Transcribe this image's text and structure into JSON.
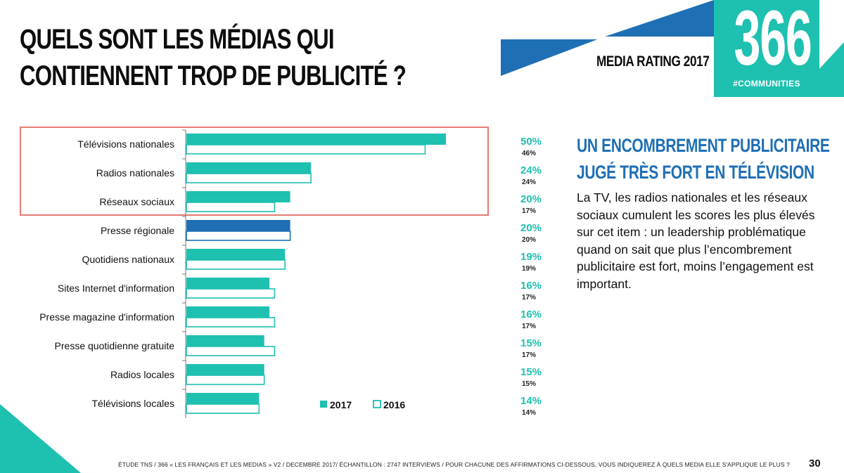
{
  "title": {
    "line1": "QUELS SONT LES MÉDIAS QUI",
    "line2": "CONTIENNENT TROP DE PUBLICITÉ ?"
  },
  "brand": {
    "label": "MEDIA RATING 2017",
    "logo_number": "366",
    "logo_tag": "#COMMUNITIES"
  },
  "colors": {
    "teal": "#1ec0b0",
    "blue": "#1f6fb4",
    "highlight_border": "#e57a70"
  },
  "chart_data": {
    "type": "bar",
    "orientation": "horizontal",
    "categories": [
      "Télévisions nationales",
      "Radios nationales",
      "Réseaux sociaux",
      "Presse régionale",
      "Quotidiens nationaux",
      "Sites Internet d'information",
      "Presse magazine d'information",
      "Presse quotidienne gratuite",
      "Radios locales",
      "Télévisions locales"
    ],
    "series": [
      {
        "name": "2017",
        "values": [
          50,
          24,
          20,
          20,
          19,
          16,
          16,
          15,
          15,
          14
        ],
        "style": "filled"
      },
      {
        "name": "2016",
        "values": [
          46,
          24,
          17,
          20,
          19,
          17,
          17,
          17,
          15,
          14
        ],
        "style": "outline"
      }
    ],
    "value_labels_2017": [
      "50%",
      "24%",
      "20%",
      "20%",
      "19%",
      "16%",
      "16%",
      "15%",
      "15%",
      "14%"
    ],
    "value_labels_2016": [
      "46%",
      "24%",
      "17%",
      "20%",
      "19%",
      "17%",
      "17%",
      "17%",
      "15%",
      "14%"
    ],
    "highlighted_category": "Presse régionale",
    "highlight_color": "#1f6fb4",
    "boxed_categories": [
      "Télévisions nationales",
      "Radios nationales",
      "Réseaux sociaux"
    ],
    "legend": [
      "2017",
      "2016"
    ],
    "legend_position": "bottom",
    "xlim": [
      0,
      50
    ],
    "grid": false
  },
  "side": {
    "title_line1": "UN ENCOMBREMENT PUBLICITAIRE",
    "title_line2": "JUGÉ TRÈS FORT EN TÉLÉVISION",
    "body": "La TV, les radios nationales et les réseaux sociaux cumulent les scores les plus élevés sur cet item :  un leadership problématique quand on sait que plus l’encombrement publicitaire est fort, moins l’engagement est important."
  },
  "footer": {
    "source": "ÉTUDE TNS / 366 « LES FRANÇAIS ET LES MEDIAS » V2 / DECEMBRE 2017/ ÉCHANTILLON : 2747 INTERVIEWS / POUR CHACUNE DES AFFIRMATIONS CI-DESSOUS, VOUS INDIQUEREZ À QUELS MEDIA ELLE S'APPLIQUE LE PLUS ?",
    "page": "30"
  }
}
